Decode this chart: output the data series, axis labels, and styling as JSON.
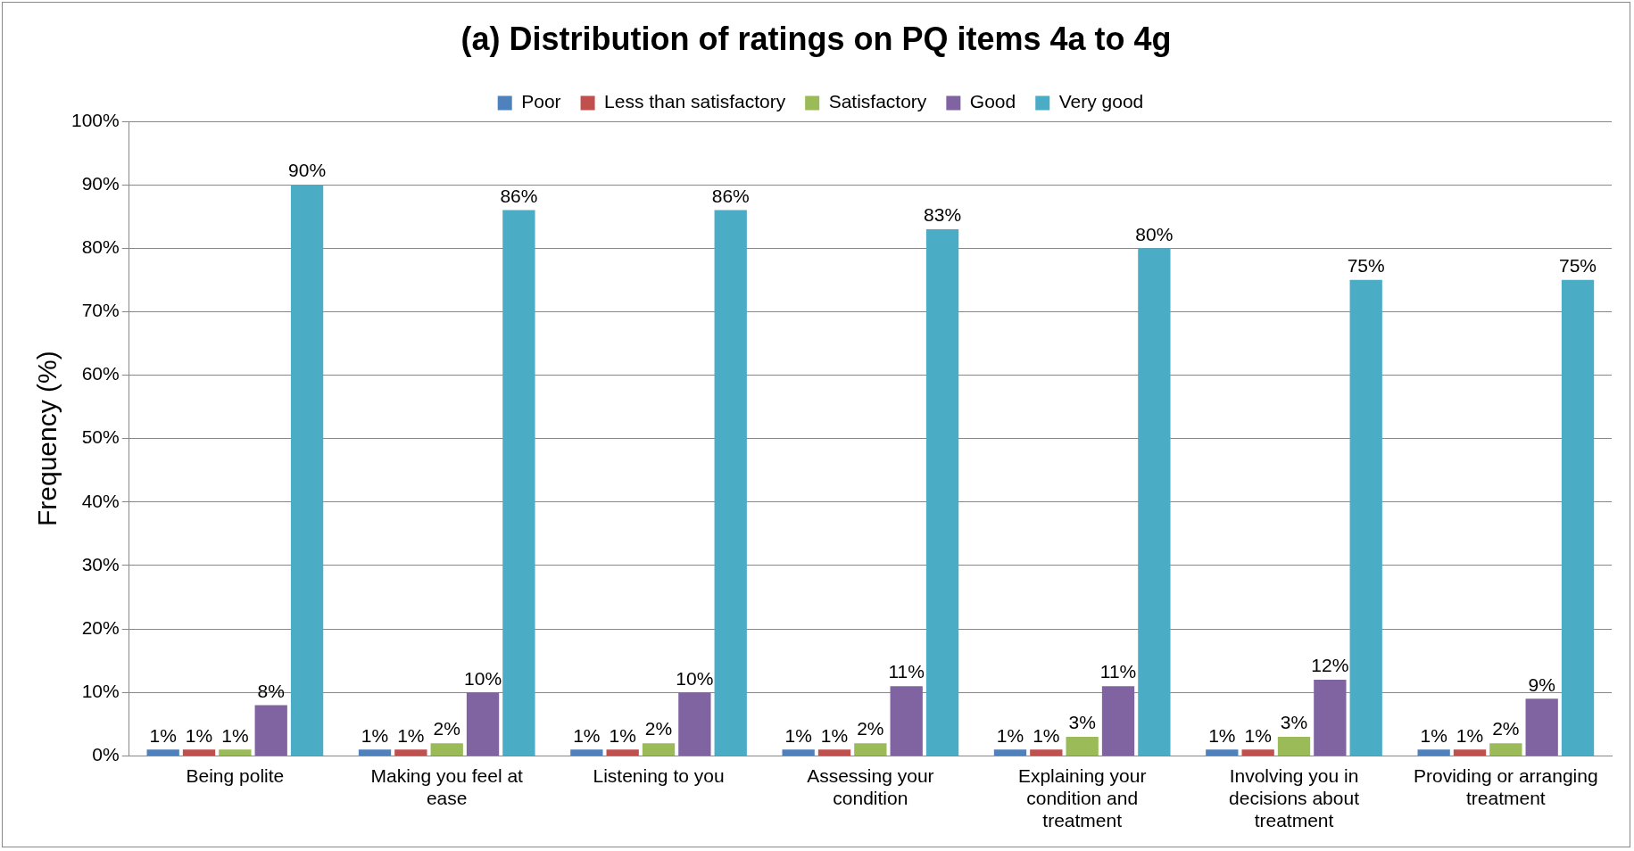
{
  "chart_data": {
    "type": "bar",
    "title": "(a) Distribution of ratings on PQ items 4a to 4g",
    "ylabel": "Frequency (%)",
    "categories": [
      "Being polite",
      "Making you feel at ease",
      "Listening to you",
      "Assessing your condition",
      "Explaining your condition and treatment",
      "Involving you in decisions about treatment",
      "Providing or arranging treatment"
    ],
    "series": [
      {
        "name": "Poor",
        "color": "#4f81bd",
        "values": [
          1,
          1,
          1,
          1,
          1,
          1,
          1
        ],
        "value_labels": [
          "1%",
          "1%",
          "1%",
          "1%",
          "1%",
          "1%",
          "1%"
        ]
      },
      {
        "name": "Less than satisfactory",
        "color": "#c0504d",
        "values": [
          1,
          1,
          1,
          1,
          1,
          1,
          1
        ],
        "value_labels": [
          "1%",
          "1%",
          "1%",
          "1%",
          "1%",
          "1%",
          "1%"
        ]
      },
      {
        "name": "Satisfactory",
        "color": "#9bbb59",
        "values": [
          1,
          2,
          2,
          2,
          3,
          3,
          2
        ],
        "value_labels": [
          "1%",
          "2%",
          "2%",
          "2%",
          "3%",
          "3%",
          "2%"
        ]
      },
      {
        "name": "Good",
        "color": "#8064a2",
        "values": [
          8,
          10,
          10,
          11,
          11,
          12,
          9
        ],
        "value_labels": [
          "8%",
          "10%",
          "10%",
          "11%",
          "11%",
          "12%",
          "9%"
        ]
      },
      {
        "name": "Very good",
        "color": "#4bacc6",
        "values": [
          90,
          86,
          86,
          83,
          80,
          75,
          75
        ],
        "value_labels": [
          "90%",
          "86%",
          "86%",
          "83%",
          "80%",
          "75%",
          "75%"
        ]
      }
    ],
    "ylim": [
      0,
      100
    ],
    "yticks": [
      {
        "value": 0,
        "label": "0%"
      },
      {
        "value": 10,
        "label": "10%"
      },
      {
        "value": 20,
        "label": "20%"
      },
      {
        "value": 30,
        "label": "30%"
      },
      {
        "value": 40,
        "label": "40%"
      },
      {
        "value": 50,
        "label": "50%"
      },
      {
        "value": 60,
        "label": "60%"
      },
      {
        "value": 70,
        "label": "70%"
      },
      {
        "value": 80,
        "label": "80%"
      },
      {
        "value": 90,
        "label": "90%"
      },
      {
        "value": 100,
        "label": "100%"
      }
    ],
    "grid": "y",
    "legend": "top"
  }
}
